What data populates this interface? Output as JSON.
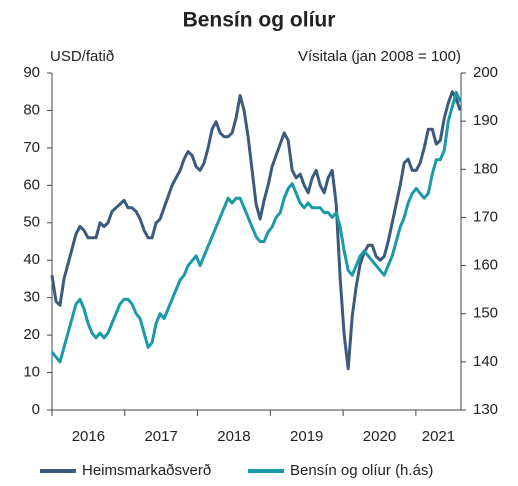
{
  "chart_data": {
    "type": "line",
    "title": "Bensín og olíur",
    "ylabel": "USD/fatið",
    "y2label": "Vísitala (jan 2008 = 100)",
    "x": [
      2016,
      2016.055,
      2016.11,
      2016.165,
      2016.22,
      2016.275,
      2016.33,
      2016.385,
      2016.44,
      2016.495,
      2016.55,
      2016.605,
      2016.66,
      2016.715,
      2016.77,
      2016.825,
      2016.88,
      2016.935,
      2016.99,
      2017.045,
      2017.1,
      2017.155,
      2017.21,
      2017.265,
      2017.32,
      2017.375,
      2017.43,
      2017.485,
      2017.54,
      2017.595,
      2017.65,
      2017.705,
      2017.76,
      2017.815,
      2017.87,
      2017.925,
      2017.98,
      2018.035,
      2018.09,
      2018.145,
      2018.2,
      2018.255,
      2018.31,
      2018.365,
      2018.42,
      2018.475,
      2018.53,
      2018.585,
      2018.64,
      2018.695,
      2018.75,
      2018.805,
      2018.86,
      2018.915,
      2018.97,
      2019.025,
      2019.08,
      2019.135,
      2019.19,
      2019.245,
      2019.3,
      2019.355,
      2019.41,
      2019.465,
      2019.52,
      2019.575,
      2019.63,
      2019.685,
      2019.74,
      2019.795,
      2019.85,
      2019.905,
      2019.96,
      2020.015,
      2020.07,
      2020.125,
      2020.18,
      2020.235,
      2020.29,
      2020.345,
      2020.4,
      2020.455,
      2020.51,
      2020.565,
      2020.62,
      2020.675,
      2020.73,
      2020.785,
      2020.84,
      2020.895,
      2020.95,
      2021.005,
      2021.06,
      2021.115,
      2021.17,
      2021.225,
      2021.28,
      2021.335,
      2021.39,
      2021.445,
      2021.5,
      2021.555,
      2021.61
    ],
    "series": [
      {
        "name": "Heimsmarkaðsverð",
        "color": "#3b5a7d",
        "values": [
          36,
          29,
          28,
          35,
          39,
          43,
          47,
          49,
          48,
          46,
          46,
          46,
          50,
          49,
          50,
          53,
          54,
          55,
          56,
          54,
          54,
          53,
          51,
          48,
          46,
          46,
          50,
          51,
          54,
          57,
          60,
          62,
          64,
          67,
          69,
          68,
          65,
          64,
          66,
          70,
          75,
          77,
          74,
          73,
          73,
          74,
          78,
          84,
          80,
          73,
          64,
          55,
          51,
          56,
          60,
          65,
          68,
          71,
          74,
          72,
          64,
          62,
          63,
          60,
          58,
          62,
          64,
          60,
          58,
          62,
          64,
          55,
          35,
          20,
          11,
          25,
          33,
          39,
          42,
          44,
          44,
          41,
          40,
          41,
          45,
          50,
          55,
          60,
          66,
          67,
          64,
          64,
          66,
          70,
          75,
          75,
          71,
          72,
          78,
          82,
          85,
          83,
          80
        ]
      },
      {
        "name": "Bensín og olíur (h.ás)",
        "color": "#1a9aa6",
        "axis": "y2",
        "values": [
          142,
          141,
          140,
          143,
          146,
          149,
          152,
          153,
          151,
          148,
          146,
          145,
          146,
          145,
          146,
          148,
          150,
          152,
          153,
          153,
          152,
          150,
          149,
          146,
          143,
          144,
          148,
          150,
          149,
          151,
          153,
          155,
          157,
          158,
          160,
          161,
          162,
          160,
          162,
          164,
          166,
          168,
          170,
          172,
          174,
          173,
          174,
          174,
          172,
          170,
          168,
          166,
          165,
          165,
          167,
          168,
          170,
          171,
          174,
          176,
          177,
          175,
          173,
          172,
          173,
          172,
          172,
          172,
          171,
          171,
          170,
          171,
          168,
          163,
          159,
          158,
          160,
          162,
          163,
          162,
          161,
          160,
          159,
          158,
          160,
          162,
          165,
          168,
          170,
          173,
          175,
          176,
          175,
          174,
          175,
          179,
          182,
          182,
          184,
          190,
          193,
          196,
          194
        ]
      }
    ],
    "xlim": [
      2016,
      2021.62
    ],
    "xticks": [
      2016,
      2017,
      2018,
      2019,
      2020,
      2021
    ],
    "ylim": [
      0,
      90
    ],
    "yticks": [
      0,
      10,
      20,
      30,
      40,
      50,
      60,
      70,
      80,
      90
    ],
    "y2lim": [
      130,
      200
    ],
    "y2ticks": [
      130,
      140,
      150,
      160,
      170,
      180,
      190,
      200
    ],
    "grid": false,
    "legend": "bottom"
  }
}
